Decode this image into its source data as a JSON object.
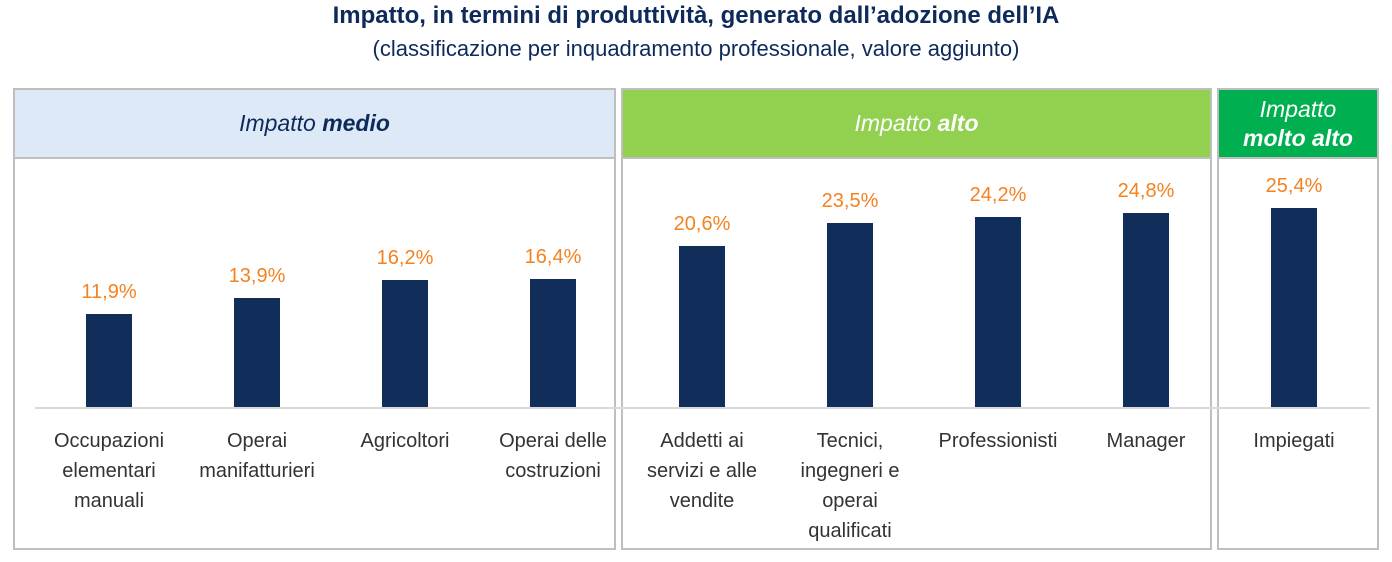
{
  "chart_data": {
    "type": "bar",
    "title": "Impatto, in termini di produttività, generato dall’adozione dell’IA",
    "subtitle": "(classificazione per inquadramento professionale, valore aggiunto)",
    "categories": [
      "Occupazioni\nelementari\nmanuali",
      "Operai\nmanifatturieri",
      "Agricoltori",
      "Operai delle\ncostruzioni",
      "Addetti ai\nservizi e alle\nvendite",
      "Tecnici,\ningegneri e\noperai\nqualificati",
      "Professionisti",
      "Manager",
      "Impiegati"
    ],
    "values": [
      11.9,
      13.9,
      16.2,
      16.4,
      20.6,
      23.5,
      24.2,
      24.8,
      25.4
    ],
    "data_labels": [
      "11,9%",
      "13,9%",
      "16,2%",
      "16,4%",
      "20,6%",
      "23,5%",
      "24,2%",
      "24,8%",
      "25,4%"
    ],
    "groups": [
      {
        "label_normal": "Impatto",
        "label_bold": "medio",
        "members": [
          0,
          1,
          2,
          3
        ],
        "color": "#dde9f6",
        "text_color": "#0e2a5a"
      },
      {
        "label_normal": "Impatto",
        "label_bold": "alto",
        "members": [
          4,
          5,
          6,
          7
        ],
        "color": "#92d050",
        "text_color": "#ffffff"
      },
      {
        "label_normal": "Impatto",
        "label_bold": "molto alto",
        "members": [
          8
        ],
        "color": "#00b050",
        "text_color": "#ffffff"
      }
    ],
    "ylim": [
      0,
      28
    ],
    "grid": false,
    "bar_color": "#112e5a",
    "label_color": "#f58220"
  }
}
